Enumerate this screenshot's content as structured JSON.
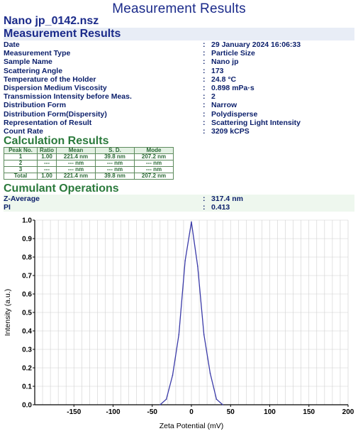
{
  "page": {
    "title": "Measurement Results",
    "filename": "Nano jp_0142.nsz"
  },
  "measurement": {
    "heading": "Measurement Results",
    "rows": [
      {
        "label": "Date",
        "value": "29 January 2024 16:06:33"
      },
      {
        "label": "Measurement Type",
        "value": "Particle Size"
      },
      {
        "label": "Sample Name",
        "value": "Nano jp"
      },
      {
        "label": "Scattering Angle",
        "value": "173"
      },
      {
        "label": "Temperature of the Holder",
        "value": "24.8 °C"
      },
      {
        "label": "Dispersion Medium Viscosity",
        "value": "0.898 mPa·s"
      },
      {
        "label": "Transmission Intensity before Meas.",
        "value": "2"
      },
      {
        "label": "Distribution Form",
        "value": "Narrow"
      },
      {
        "label": "Distribution Form(Dispersity)",
        "value": "Polydisperse"
      },
      {
        "label": "Representation of Result",
        "value": "Scattering Light Intensity"
      },
      {
        "label": "Count Rate",
        "value": "3209 kCPS"
      }
    ]
  },
  "calculation": {
    "heading": "Calculation Results",
    "columns": [
      "Peak No.",
      "Ratio",
      "Mean",
      "S. D.",
      "Mode"
    ],
    "rows": [
      [
        "1",
        "1.00",
        "221.4 nm",
        "39.8 nm",
        "207.2 nm"
      ],
      [
        "2",
        "---",
        "--- nm",
        "--- nm",
        "--- nm"
      ],
      [
        "3",
        "---",
        "--- nm",
        "--- nm",
        "--- nm"
      ],
      [
        "Total",
        "1.00",
        "221.4 nm",
        "39.8 nm",
        "207.2 nm"
      ]
    ]
  },
  "cumulant": {
    "heading": "Cumulant Operations",
    "rows": [
      {
        "label": "Z-Average",
        "value": "317.4 nm"
      },
      {
        "label": "PI",
        "value": "0.413"
      }
    ]
  },
  "separator": ":",
  "colors": {
    "header_blue": "#1a2a8a",
    "section_green": "#2b7a3c",
    "curve": "#3a3aa8",
    "grid": "#cfcfcf"
  },
  "chart_data": {
    "type": "line",
    "xlabel": "Zeta Potential (mV)",
    "ylabel": "Intensity (a.u.)",
    "xlim": [
      -200,
      200
    ],
    "ylim": [
      0,
      1.0
    ],
    "x_ticks": [
      -150,
      -100,
      -50,
      0,
      50,
      100,
      150,
      200
    ],
    "x_tick_labels": [
      "-150",
      "-100",
      "-50",
      "0",
      "50",
      "100",
      "150",
      "200"
    ],
    "y_ticks": [
      0.0,
      0.1,
      0.2,
      0.3,
      0.4,
      0.5,
      0.6,
      0.7,
      0.8,
      0.9,
      1.0
    ],
    "y_tick_labels": [
      "0.0",
      "0.1",
      "0.2",
      "0.3",
      "0.4",
      "0.5",
      "0.6",
      "0.7",
      "0.8",
      "0.9",
      "1.0"
    ],
    "grid": true,
    "series": [
      {
        "x": [
          -40,
          -32,
          -24,
          -16,
          -8,
          0,
          8,
          16,
          24,
          32,
          40
        ],
        "y": [
          0.0,
          0.03,
          0.16,
          0.38,
          0.78,
          0.99,
          0.75,
          0.38,
          0.17,
          0.03,
          0.0
        ]
      }
    ]
  }
}
